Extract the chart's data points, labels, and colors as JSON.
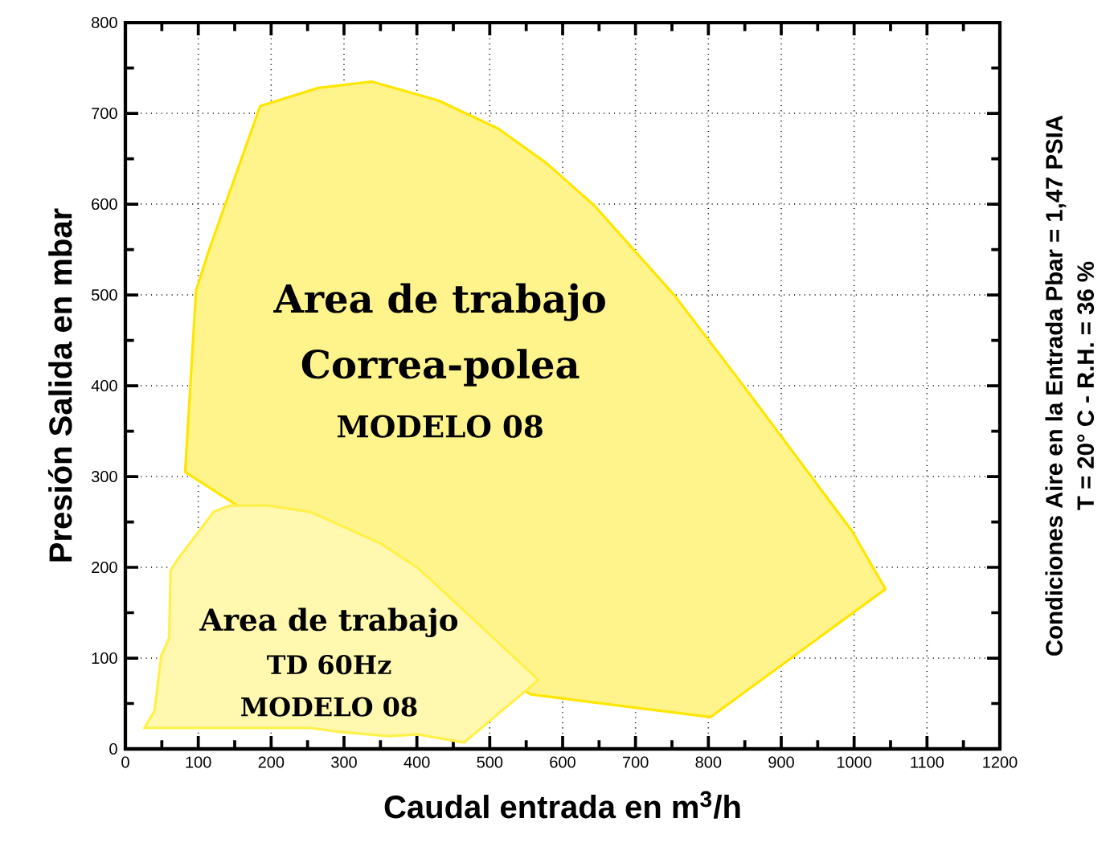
{
  "chart_data": {
    "type": "area",
    "xlabel": "Caudal entrada en m$^{3}$/h",
    "ylabel": "Presión Salida en mbar",
    "xlim": [
      0,
      1200
    ],
    "ylim": [
      0,
      800
    ],
    "xticks": [
      0,
      100,
      200,
      300,
      400,
      500,
      600,
      700,
      800,
      900,
      1000,
      1100,
      1200
    ],
    "yticks": [
      0,
      100,
      200,
      300,
      400,
      500,
      600,
      700,
      800
    ],
    "grid": true,
    "series": [
      {
        "color": "#ffe600",
        "x": [
          82,
          97,
          115,
          185,
          265,
          338,
          430,
          512,
          578,
          644,
          754,
          849,
          997,
          1043,
          803,
          556
        ],
        "values": [
          305,
          505,
          550,
          708,
          728,
          735,
          714,
          683,
          645,
          598,
          499,
          399,
          240,
          176,
          35,
          60
        ]
      },
      {
        "color": "#fff04a",
        "x": [
          26,
          40,
          49,
          60,
          62,
          71,
          121,
          143,
          196,
          254,
          351,
          402,
          567,
          465,
          401,
          362,
          291,
          254
        ],
        "values": [
          23,
          42,
          102,
          122,
          196,
          208,
          261,
          268,
          268,
          261,
          226,
          199,
          76,
          7,
          16,
          14,
          19,
          23
        ]
      }
    ],
    "annotations": [
      "Area de trabajo",
      "Correa-polea",
      "MODELO 08",
      "Area de trabajo",
      "TD 60Hz",
      "MODELO 08",
      "Condiciones Aire en la Entrada Pbar = 1,47 PSIA",
      "T = 20° C - R.H. = 36 %"
    ]
  }
}
